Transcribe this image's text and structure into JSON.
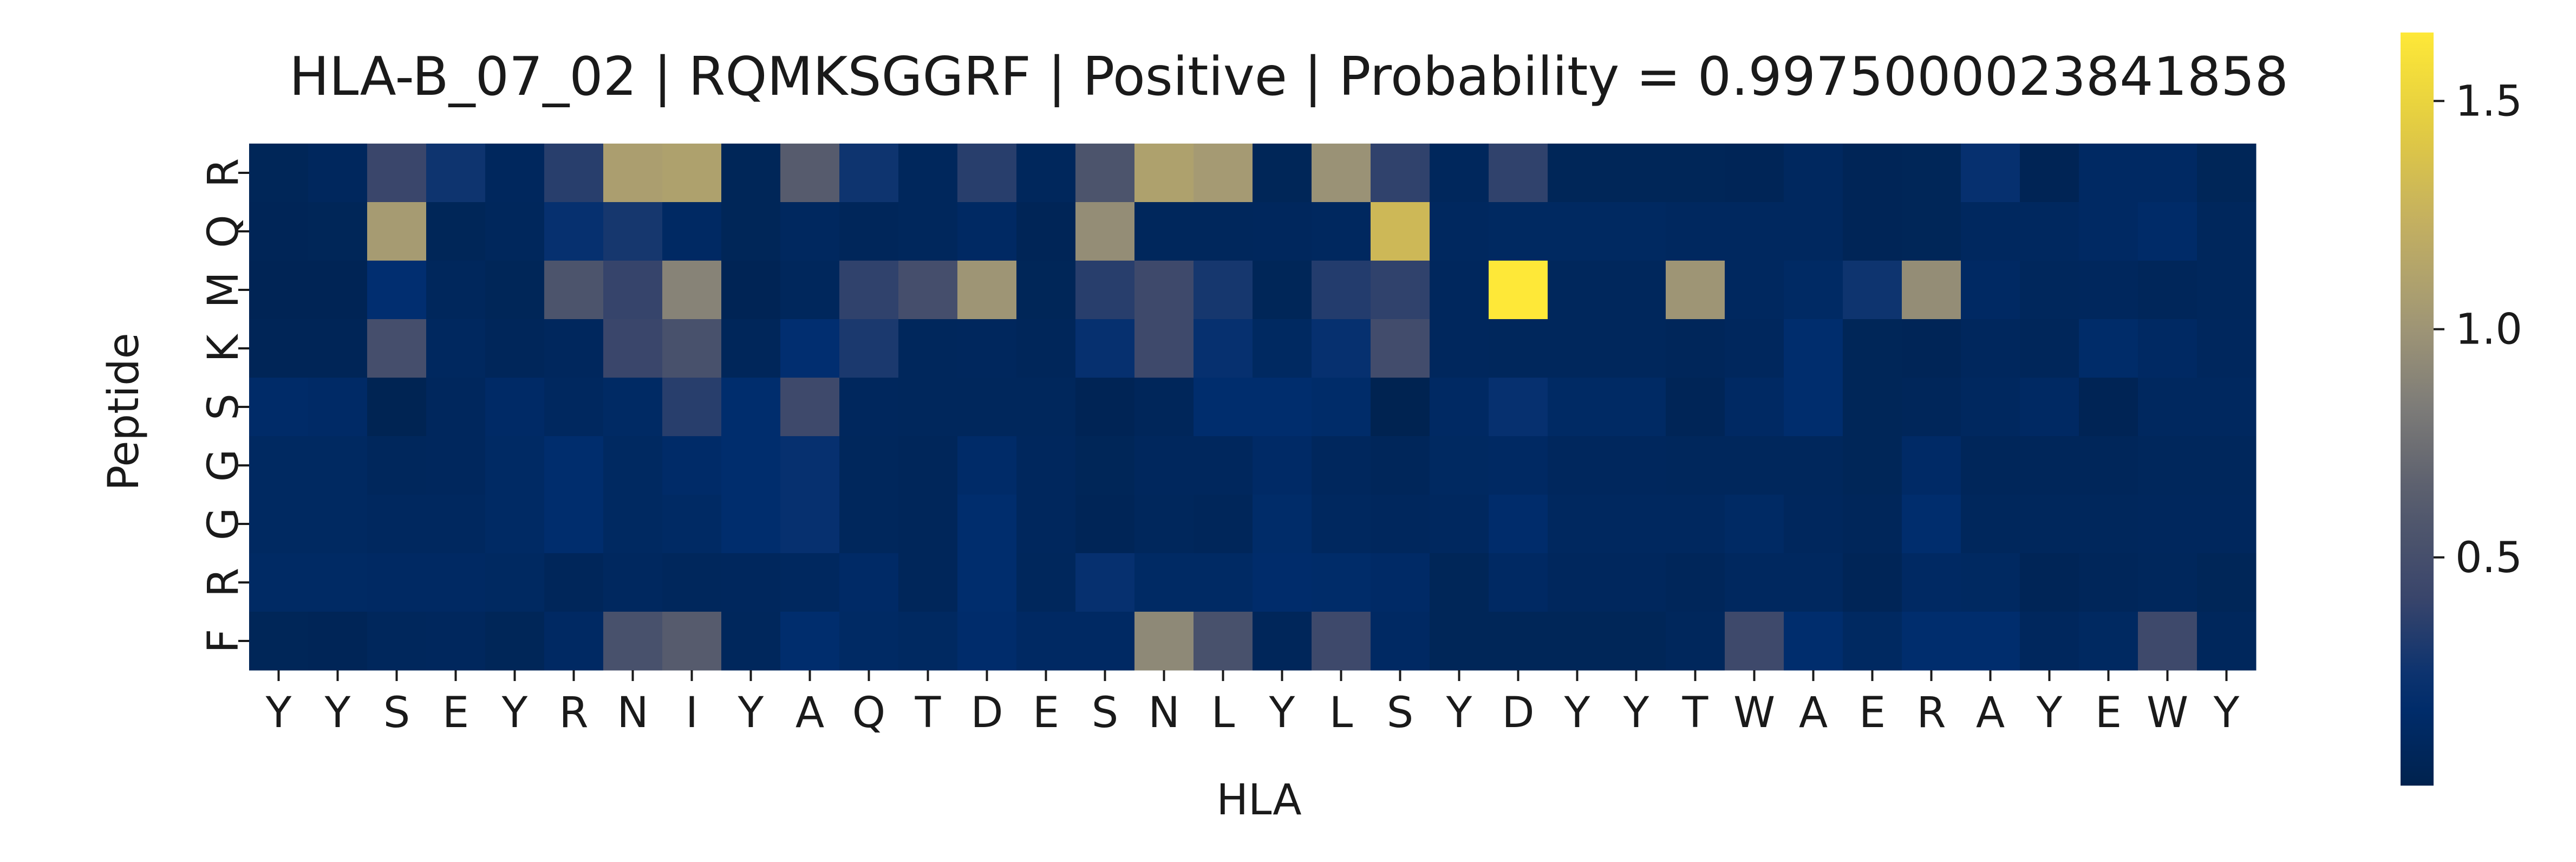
{
  "chart_data": {
    "type": "heatmap",
    "title": "HLA-B_07_02 | RQMKSGGRF | Positive | Probability = 0.9975000023841858",
    "xlabel": "HLA",
    "ylabel": "Peptide",
    "x_categories": [
      "Y",
      "Y",
      "S",
      "E",
      "Y",
      "R",
      "N",
      "I",
      "Y",
      "A",
      "Q",
      "T",
      "D",
      "E",
      "S",
      "N",
      "L",
      "Y",
      "L",
      "S",
      "Y",
      "D",
      "Y",
      "Y",
      "T",
      "W",
      "A",
      "E",
      "R",
      "A",
      "Y",
      "E",
      "W",
      "Y"
    ],
    "y_categories": [
      "R",
      "Q",
      "M",
      "K",
      "S",
      "G",
      "G",
      "R",
      "F"
    ],
    "colorbar": {
      "colormap": "cividis",
      "vmin": 0.0,
      "vmax": 1.65,
      "ticks": [
        0.5,
        1.0,
        1.5
      ],
      "tick_labels": [
        "0.5",
        "1.0",
        "1.5"
      ]
    },
    "values": [
      [
        0.06,
        0.09,
        0.42,
        0.25,
        0.09,
        0.35,
        1.08,
        1.1,
        0.06,
        0.62,
        0.25,
        0.08,
        0.35,
        0.08,
        0.55,
        1.1,
        1.04,
        0.06,
        0.98,
        0.38,
        0.08,
        0.38,
        0.06,
        0.06,
        0.06,
        0.05,
        0.1,
        0.05,
        0.06,
        0.22,
        0.04,
        0.12,
        0.12,
        0.06
      ],
      [
        0.05,
        0.06,
        1.05,
        0.06,
        0.08,
        0.22,
        0.28,
        0.12,
        0.06,
        0.1,
        0.07,
        0.08,
        0.12,
        0.05,
        0.95,
        0.08,
        0.08,
        0.09,
        0.1,
        1.3,
        0.1,
        0.11,
        0.11,
        0.11,
        0.1,
        0.1,
        0.1,
        0.05,
        0.06,
        0.1,
        0.1,
        0.12,
        0.15,
        0.08
      ],
      [
        0.04,
        0.04,
        0.2,
        0.08,
        0.06,
        0.55,
        0.4,
        0.88,
        0.04,
        0.08,
        0.38,
        0.5,
        1.0,
        0.06,
        0.35,
        0.45,
        0.28,
        0.06,
        0.33,
        0.38,
        0.09,
        1.65,
        0.08,
        0.08,
        1.0,
        0.1,
        0.13,
        0.25,
        0.95,
        0.12,
        0.08,
        0.09,
        0.07,
        0.08
      ],
      [
        0.05,
        0.05,
        0.5,
        0.1,
        0.07,
        0.09,
        0.42,
        0.52,
        0.07,
        0.2,
        0.3,
        0.08,
        0.09,
        0.07,
        0.22,
        0.45,
        0.22,
        0.11,
        0.22,
        0.48,
        0.09,
        0.08,
        0.08,
        0.08,
        0.07,
        0.09,
        0.18,
        0.06,
        0.05,
        0.09,
        0.07,
        0.16,
        0.12,
        0.09
      ],
      [
        0.15,
        0.14,
        0.03,
        0.09,
        0.14,
        0.1,
        0.13,
        0.35,
        0.18,
        0.45,
        0.09,
        0.08,
        0.08,
        0.08,
        0.04,
        0.07,
        0.18,
        0.18,
        0.16,
        0.02,
        0.12,
        0.22,
        0.13,
        0.13,
        0.05,
        0.12,
        0.18,
        0.06,
        0.07,
        0.1,
        0.12,
        0.04,
        0.1,
        0.1
      ],
      [
        0.11,
        0.11,
        0.08,
        0.09,
        0.13,
        0.18,
        0.11,
        0.15,
        0.18,
        0.22,
        0.08,
        0.07,
        0.15,
        0.09,
        0.06,
        0.09,
        0.09,
        0.14,
        0.09,
        0.07,
        0.11,
        0.12,
        0.09,
        0.09,
        0.08,
        0.08,
        0.08,
        0.06,
        0.14,
        0.07,
        0.07,
        0.07,
        0.08,
        0.08
      ],
      [
        0.11,
        0.11,
        0.1,
        0.1,
        0.13,
        0.18,
        0.11,
        0.13,
        0.18,
        0.22,
        0.08,
        0.07,
        0.18,
        0.09,
        0.05,
        0.08,
        0.07,
        0.16,
        0.1,
        0.09,
        0.1,
        0.17,
        0.1,
        0.1,
        0.1,
        0.13,
        0.09,
        0.07,
        0.18,
        0.08,
        0.08,
        0.08,
        0.09,
        0.09
      ],
      [
        0.13,
        0.13,
        0.12,
        0.12,
        0.11,
        0.07,
        0.1,
        0.08,
        0.09,
        0.1,
        0.14,
        0.07,
        0.18,
        0.08,
        0.22,
        0.13,
        0.13,
        0.17,
        0.16,
        0.14,
        0.06,
        0.12,
        0.09,
        0.09,
        0.07,
        0.1,
        0.1,
        0.05,
        0.12,
        0.11,
        0.05,
        0.07,
        0.08,
        0.06
      ],
      [
        0.06,
        0.05,
        0.08,
        0.09,
        0.06,
        0.12,
        0.52,
        0.62,
        0.08,
        0.18,
        0.13,
        0.11,
        0.17,
        0.12,
        0.12,
        0.92,
        0.52,
        0.07,
        0.45,
        0.12,
        0.06,
        0.06,
        0.06,
        0.06,
        0.08,
        0.45,
        0.18,
        0.11,
        0.18,
        0.18,
        0.09,
        0.11,
        0.45,
        0.08
      ]
    ]
  }
}
